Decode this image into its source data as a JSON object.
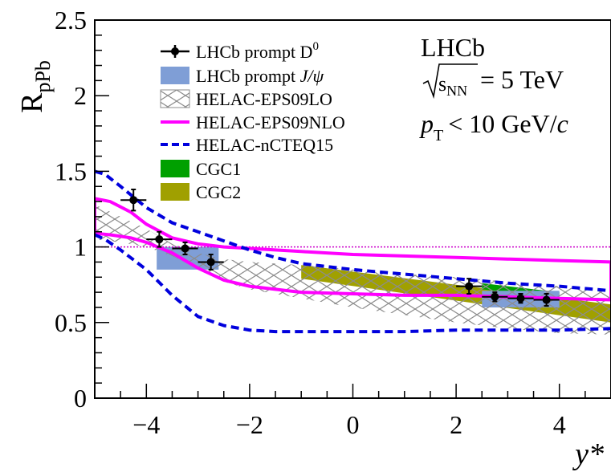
{
  "chart_data": {
    "type": "line",
    "xlabel": "y*",
    "ylabel": "R",
    "ylabel_sub": "pPb",
    "xlim": [
      -5,
      5
    ],
    "ylim": [
      0,
      2.5
    ],
    "x_ticks": [
      -4,
      -2,
      0,
      2,
      4
    ],
    "x_tick_labels": [
      "−4",
      "−2",
      "0",
      "2",
      "4"
    ],
    "y_ticks": [
      0,
      0.5,
      1,
      1.5,
      2,
      2.5
    ],
    "y_tick_labels": [
      "0",
      "0.5",
      "1",
      "1.5",
      "2",
      "2.5"
    ],
    "reference_line": 1,
    "annotations": {
      "experiment": "LHCb",
      "sqrt_s_symbol": "s",
      "sqrt_s_sub": "NN",
      "energy": "= 5 TeV",
      "pt_symbol": "p",
      "pt_sub": "T",
      "pt_cut": "< 10 GeV/",
      "pt_unit_c": "c"
    },
    "legend": {
      "position": "top-left",
      "entries": [
        {
          "key": "d0",
          "text": "LHCb prompt D",
          "sup": "0"
        },
        {
          "key": "jpsi",
          "text": "LHCb prompt ",
          "italic": "J/ψ"
        },
        {
          "key": "eps09lo",
          "text": "HELAC-EPS09LO"
        },
        {
          "key": "eps09nlo",
          "text": "HELAC-EPS09NLO"
        },
        {
          "key": "ncteq15",
          "text": "HELAC-nCTEQ15"
        },
        {
          "key": "cgc1",
          "text": "CGC1"
        },
        {
          "key": "cgc2",
          "text": "CGC2"
        }
      ]
    },
    "colors": {
      "d0": "#000000",
      "jpsi": "#7f9ed6",
      "eps09lo": "#8c8c8c",
      "eps09nlo": "#ff00ff",
      "ncteq15": "#0000dd",
      "cgc1": "#00a000",
      "cgc2": "#a0a000",
      "refline": "#cc00cc"
    },
    "series": [
      {
        "name": "LHCb prompt D0",
        "points": [
          {
            "x": -4.25,
            "y": 1.31,
            "xerr": 0.25,
            "yerr": 0.07
          },
          {
            "x": -3.75,
            "y": 1.05,
            "xerr": 0.25,
            "yerr": 0.05
          },
          {
            "x": -3.25,
            "y": 0.99,
            "xerr": 0.25,
            "yerr": 0.04
          },
          {
            "x": -2.75,
            "y": 0.9,
            "xerr": 0.25,
            "yerr": 0.05
          },
          {
            "x": 2.25,
            "y": 0.74,
            "xerr": 0.25,
            "yerr": 0.05
          },
          {
            "x": 2.75,
            "y": 0.67,
            "xerr": 0.25,
            "yerr": 0.03
          },
          {
            "x": 3.25,
            "y": 0.66,
            "xerr": 0.25,
            "yerr": 0.03
          },
          {
            "x": 3.75,
            "y": 0.65,
            "xerr": 0.25,
            "yerr": 0.04
          }
        ]
      },
      {
        "name": "LHCb prompt J/psi",
        "boxes": [
          {
            "x0": -3.8,
            "x1": -2.6,
            "y0": 0.85,
            "y1": 1.0
          },
          {
            "x0": 2.5,
            "x1": 4.0,
            "y0": 0.6,
            "y1": 0.71
          }
        ]
      },
      {
        "name": "HELAC-EPS09LO",
        "x": [
          -5,
          -4.5,
          -4,
          -3.5,
          -3,
          -2.5,
          -2,
          -1,
          0,
          1,
          2,
          3,
          4,
          5
        ],
        "upper": [
          1.28,
          1.2,
          1.12,
          1.02,
          0.96,
          0.92,
          0.9,
          0.88,
          0.85,
          0.82,
          0.8,
          0.77,
          0.74,
          0.7
        ],
        "lower": [
          1.05,
          1.03,
          1.0,
          0.94,
          0.86,
          0.77,
          0.72,
          0.66,
          0.6,
          0.55,
          0.5,
          0.46,
          0.43,
          0.42
        ]
      },
      {
        "name": "HELAC-EPS09NLO",
        "x": [
          -5,
          -4.7,
          -4.3,
          -4,
          -3.5,
          -3,
          -2.5,
          -2,
          -1,
          0,
          1,
          2,
          3,
          4,
          5
        ],
        "upper": [
          1.32,
          1.3,
          1.23,
          1.15,
          1.06,
          1.02,
          1.0,
          0.99,
          0.97,
          0.95,
          0.94,
          0.93,
          0.92,
          0.91,
          0.9
        ],
        "lower": [
          1.09,
          1.08,
          1.06,
          1.03,
          0.96,
          0.86,
          0.78,
          0.74,
          0.7,
          0.69,
          0.68,
          0.68,
          0.67,
          0.66,
          0.65
        ]
      },
      {
        "name": "HELAC-nCTEQ15",
        "x": [
          -5,
          -4.8,
          -4.5,
          -4,
          -3.5,
          -3,
          -2.5,
          -2,
          -1.5,
          -1,
          0,
          1,
          2,
          3,
          4,
          5
        ],
        "upper": [
          1.5,
          1.48,
          1.4,
          1.26,
          1.16,
          1.1,
          1.04,
          0.98,
          0.93,
          0.89,
          0.85,
          0.82,
          0.79,
          0.76,
          0.74,
          0.71
        ],
        "lower": [
          1.08,
          1.05,
          0.98,
          0.85,
          0.68,
          0.54,
          0.48,
          0.45,
          0.44,
          0.44,
          0.44,
          0.44,
          0.45,
          0.45,
          0.45,
          0.46
        ]
      },
      {
        "name": "CGC1",
        "x": [
          2.5,
          4.0
        ],
        "upper": [
          0.76,
          0.7
        ],
        "lower": [
          0.72,
          0.66
        ]
      },
      {
        "name": "CGC2",
        "x": [
          -1.0,
          5.0
        ],
        "upper": [
          0.88,
          0.62
        ],
        "lower": [
          0.79,
          0.5
        ]
      }
    ]
  }
}
